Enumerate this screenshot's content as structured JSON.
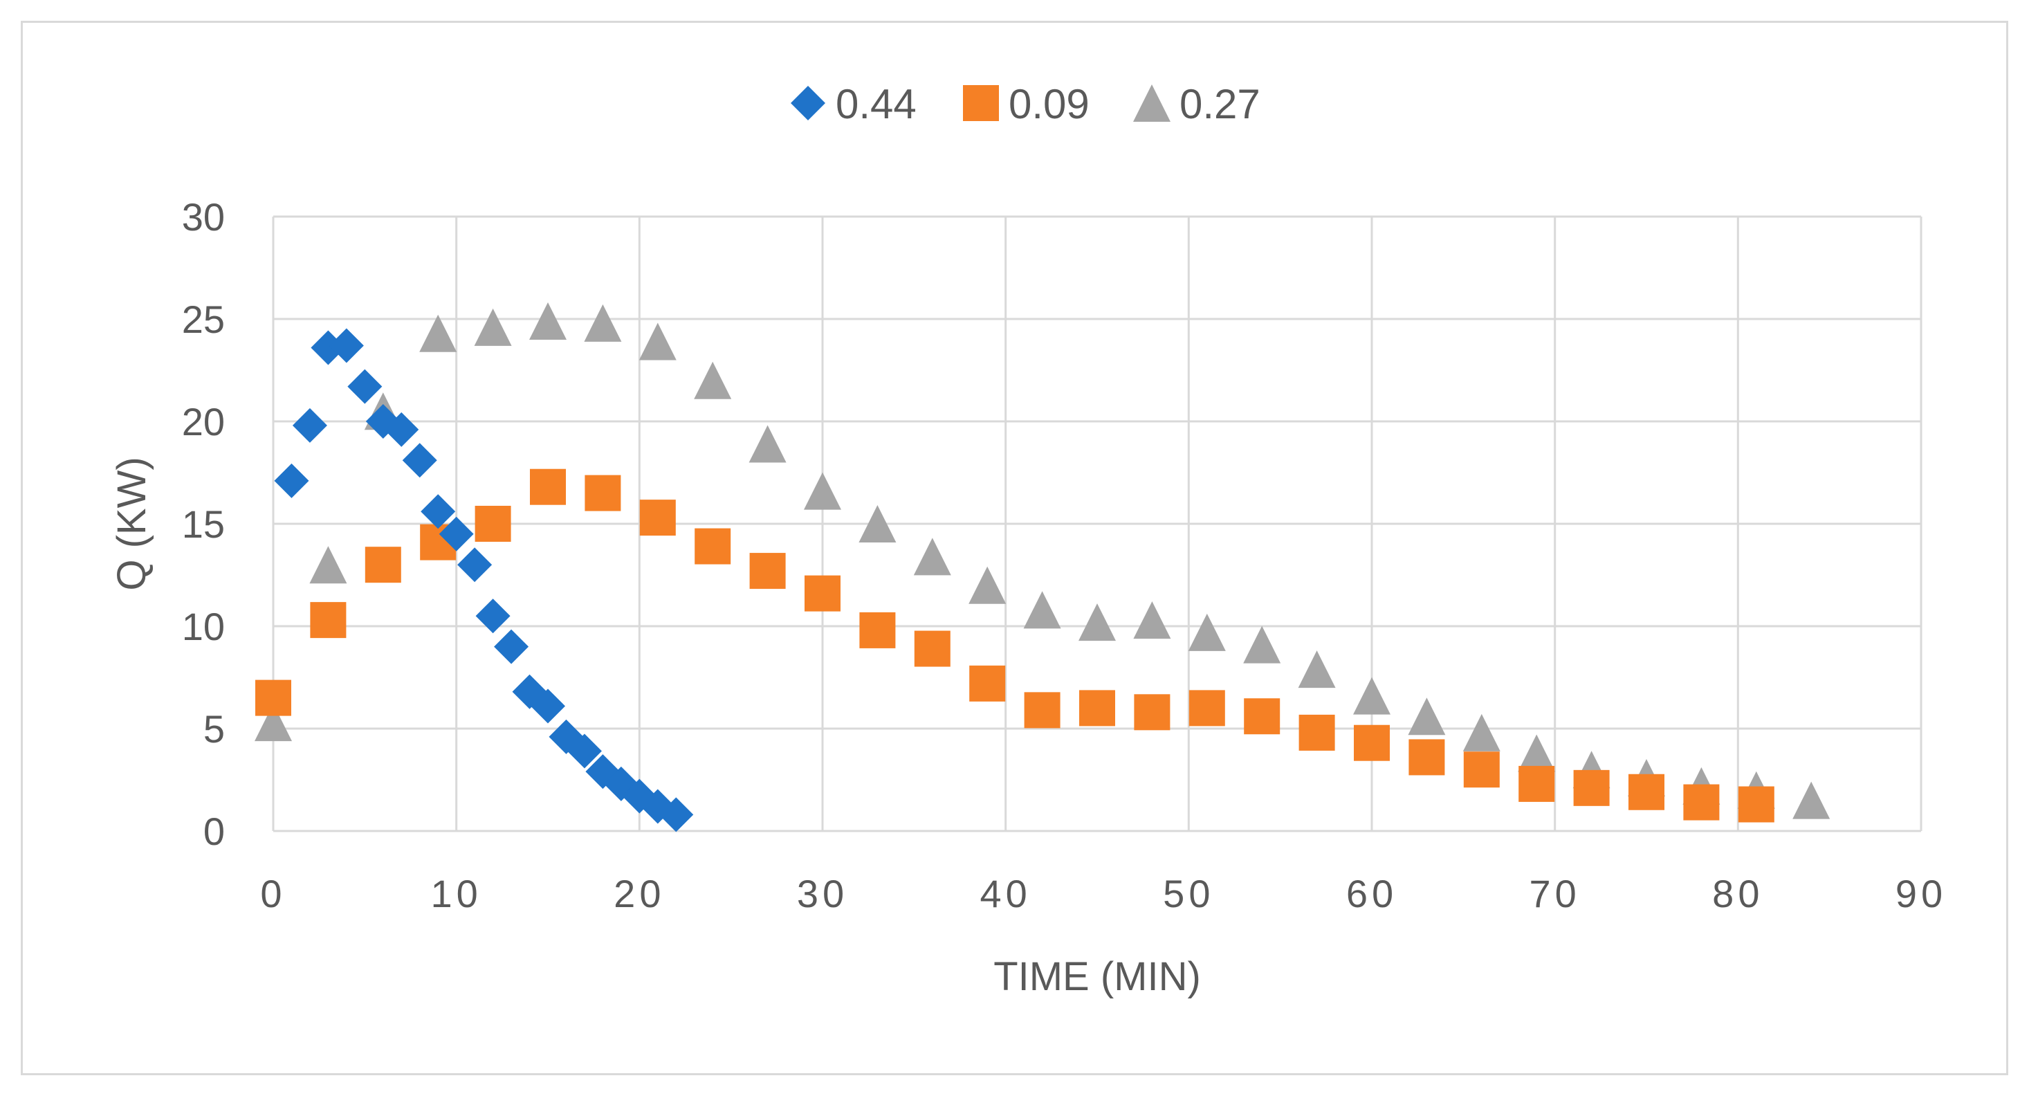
{
  "chart_data": {
    "type": "scatter",
    "title": "",
    "xlabel": "TIME (MIN)",
    "ylabel": "Q (KW)",
    "xlim": [
      0,
      90
    ],
    "ylim": [
      0,
      30
    ],
    "x_ticks": [
      0,
      10,
      20,
      30,
      40,
      50,
      60,
      70,
      80,
      90
    ],
    "y_ticks": [
      0,
      5,
      10,
      15,
      20,
      25,
      30
    ],
    "grid": true,
    "legend_position": "top-center",
    "colors": {
      "grid": "#d9d9d9",
      "text": "#595959",
      "frame": "#d9d9d9"
    },
    "series": [
      {
        "name": "0.44",
        "marker": "diamond",
        "color": "#1f73c9",
        "x": [
          1,
          2,
          3,
          4,
          5,
          6,
          7,
          8,
          9,
          10,
          11,
          12,
          13,
          14,
          15,
          16,
          17,
          18,
          19,
          20,
          21,
          22
        ],
        "y": [
          17.1,
          19.8,
          23.6,
          23.7,
          21.7,
          20.0,
          19.6,
          18.1,
          15.6,
          14.5,
          13.0,
          10.5,
          9.0,
          6.8,
          6.1,
          4.6,
          3.9,
          2.9,
          2.3,
          1.7,
          1.2,
          0.8
        ]
      },
      {
        "name": "0.09",
        "marker": "square",
        "color": "#f58025",
        "x": [
          0,
          3,
          6,
          9,
          12,
          15,
          18,
          21,
          24,
          27,
          30,
          33,
          36,
          39,
          42,
          45,
          48,
          51,
          54,
          57,
          60,
          63,
          66,
          69,
          72,
          75,
          78,
          81
        ],
        "y": [
          6.5,
          10.3,
          13.0,
          14.1,
          15.0,
          16.8,
          16.5,
          15.3,
          13.9,
          12.7,
          11.6,
          9.8,
          8.9,
          7.2,
          5.9,
          6.0,
          5.8,
          6.0,
          5.6,
          4.8,
          4.3,
          3.6,
          3.0,
          2.3,
          2.1,
          1.9,
          1.4,
          1.3
        ]
      },
      {
        "name": "0.27",
        "marker": "triangle",
        "color": "#a5a5a5",
        "x": [
          0,
          3,
          6,
          9,
          12,
          15,
          18,
          21,
          24,
          27,
          30,
          33,
          36,
          39,
          42,
          45,
          48,
          51,
          54,
          57,
          60,
          63,
          66,
          69,
          72,
          75,
          78,
          81,
          84
        ],
        "y": [
          5.3,
          13.0,
          20.5,
          24.3,
          24.6,
          24.9,
          24.8,
          23.9,
          22.0,
          18.9,
          16.6,
          15.0,
          13.4,
          12.0,
          10.8,
          10.2,
          10.3,
          9.7,
          9.1,
          7.9,
          6.6,
          5.6,
          4.8,
          3.8,
          3.0,
          2.6,
          2.2,
          2.0,
          1.5
        ]
      }
    ]
  }
}
